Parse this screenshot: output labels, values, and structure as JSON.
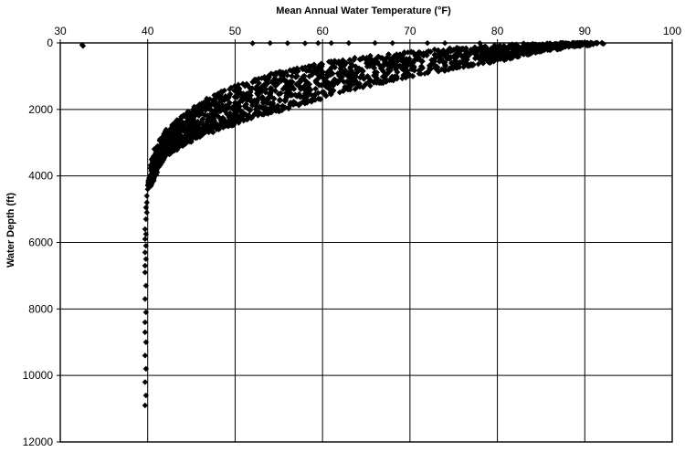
{
  "chart_data": {
    "type": "scatter",
    "title": "",
    "xlabel": "Mean Annual Water Temperature (°F)",
    "ylabel": "Water Depth (ft)",
    "x_axis_position": "top",
    "y_axis_inverted": true,
    "xlim": [
      30,
      100
    ],
    "ylim": [
      0,
      12000
    ],
    "x_ticks": [
      30,
      40,
      50,
      60,
      70,
      80,
      90,
      100
    ],
    "y_ticks": [
      0,
      2000,
      4000,
      6000,
      8000,
      10000,
      12000
    ],
    "x_tick_labels": [
      "30",
      "40",
      "50",
      "60",
      "70",
      "80",
      "90",
      "100"
    ],
    "y_tick_labels": [
      "0",
      "2000",
      "4000",
      "6000",
      "8000",
      "10000",
      "12000"
    ],
    "grid": true,
    "legend": "none",
    "marker_color": "#000000",
    "series": [
      {
        "band_upper_edge": {
          "x": [
            40.2,
            40.5,
            41.0,
            42.0,
            44.0,
            46.0,
            48.0,
            51.0,
            55.0,
            60.0,
            65.0,
            70.0,
            76.0,
            82.0,
            86.0,
            90.0
          ],
          "y": [
            4300,
            3700,
            3200,
            2700,
            2200,
            1850,
            1550,
            1200,
            900,
            620,
            430,
            280,
            150,
            70,
            25,
            0
          ]
        },
        "band_lower_edge": {
          "x": [
            40.2,
            41.0,
            42.0,
            44.0,
            46.0,
            49.0,
            52.0,
            56.0,
            60.0,
            65.0,
            70.0,
            75.0,
            80.0,
            84.0,
            88.0,
            92.0
          ],
          "y": [
            4300,
            3800,
            3400,
            3050,
            2800,
            2500,
            2250,
            1950,
            1650,
            1300,
            1000,
            760,
            530,
            320,
            120,
            0
          ]
        },
        "deep_tail": {
          "x": [
            40.0,
            39.9,
            39.9,
            39.8,
            39.9,
            39.8,
            39.7,
            39.8,
            39.7,
            39.8,
            39.7,
            39.8,
            39.7,
            39.7,
            39.8,
            39.7,
            39.8,
            39.7,
            39.7,
            39.8,
            39.7,
            39.8,
            39.7,
            39.8,
            39.7
          ],
          "y": [
            4400,
            4600,
            4800,
            4950,
            5100,
            5300,
            5600,
            5750,
            5900,
            6100,
            6300,
            6500,
            6700,
            6900,
            7300,
            7700,
            8100,
            8400,
            8700,
            9000,
            9400,
            9800,
            10200,
            10600,
            10900
          ]
        },
        "outliers": {
          "x": [
            32.5,
            32.6,
            52,
            54,
            56,
            58,
            59.5,
            61,
            63,
            66,
            68,
            72,
            74,
            78,
            81,
            83,
            84,
            88,
            89,
            91,
            92,
            81.5,
            80.8,
            79.5
          ],
          "y": [
            60,
            90,
            10,
            5,
            8,
            12,
            6,
            5,
            4,
            3,
            5,
            4,
            6,
            8,
            200,
            15,
            60,
            20,
            45,
            30,
            10,
            450,
            520,
            400
          ]
        }
      }
    ]
  }
}
